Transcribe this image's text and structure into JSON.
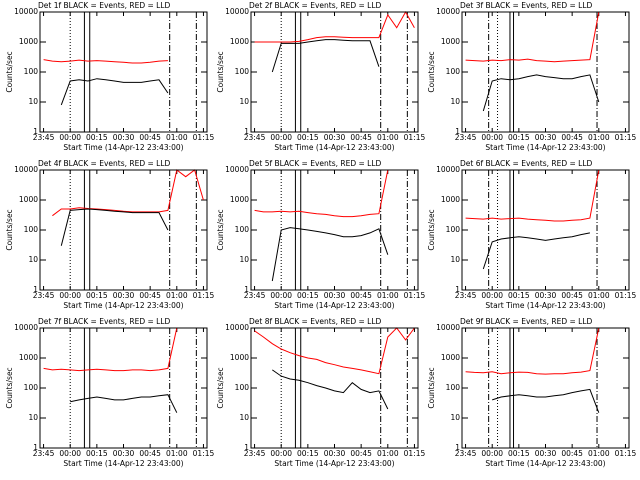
{
  "chart_data": [
    {
      "type": "line",
      "title": "Det 1f BLACK = Events, RED = LLD",
      "x_label": "Start Time (14-Apr-12 23:43:00)",
      "y_label": "Counts/sec",
      "log_y": true,
      "x": [
        "23:45",
        "23:50",
        "23:55",
        "00:00",
        "00:05",
        "00:10",
        "00:15",
        "00:20",
        "00:25",
        "00:30",
        "00:35",
        "00:40",
        "00:45",
        "00:50",
        "00:55",
        "01:00",
        "01:05",
        "01:10",
        "01:15"
      ],
      "xlim": [
        "23:43",
        "01:17"
      ],
      "xticks": [
        "23:45",
        "00:00",
        "00:15",
        "00:30",
        "00:45",
        "01:00",
        "01:15"
      ],
      "ylim": [
        1,
        10000
      ],
      "yticks": [
        1,
        10,
        100,
        1000,
        10000
      ],
      "markers": [
        {
          "x": "00:00",
          "style": "dotted"
        },
        {
          "x": "00:08",
          "style": "solid"
        },
        {
          "x": "00:11",
          "style": "solid"
        },
        {
          "x": "00:56",
          "style": "dashdot"
        },
        {
          "x": "01:11",
          "style": "dashdot"
        }
      ],
      "series": [
        {
          "color": "#ff0000",
          "values": [
            260,
            230,
            220,
            230,
            250,
            230,
            240,
            230,
            220,
            210,
            200,
            200,
            210,
            230,
            240,
            null,
            null,
            null,
            null
          ]
        },
        {
          "color": "#000000",
          "values": [
            null,
            null,
            8,
            50,
            55,
            50,
            60,
            55,
            50,
            45,
            45,
            45,
            50,
            55,
            20,
            null,
            null,
            null,
            null
          ]
        }
      ]
    },
    {
      "type": "line",
      "title": "Det 2f BLACK = Events, RED = LLD",
      "x_label": "Start Time (14-Apr-12 23:43:00)",
      "y_label": "Counts/sec",
      "log_y": true,
      "x": [
        "23:45",
        "23:50",
        "23:55",
        "00:00",
        "00:05",
        "00:10",
        "00:15",
        "00:20",
        "00:25",
        "00:30",
        "00:35",
        "00:40",
        "00:45",
        "00:50",
        "00:55",
        "01:00",
        "01:05",
        "01:10",
        "01:15"
      ],
      "xlim": [
        "23:43",
        "01:17"
      ],
      "xticks": [
        "23:45",
        "00:00",
        "00:15",
        "00:30",
        "00:45",
        "01:00",
        "01:15"
      ],
      "ylim": [
        1,
        10000
      ],
      "yticks": [
        1,
        10,
        100,
        1000,
        10000
      ],
      "markers": [
        {
          "x": "00:00",
          "style": "dotted"
        },
        {
          "x": "00:08",
          "style": "solid"
        },
        {
          "x": "00:11",
          "style": "solid"
        },
        {
          "x": "00:56",
          "style": "dashdot"
        },
        {
          "x": "01:11",
          "style": "dashdot"
        }
      ],
      "series": [
        {
          "color": "#ff0000",
          "values": [
            1000,
            1000,
            1000,
            1000,
            1000,
            1050,
            1200,
            1400,
            1500,
            1500,
            1450,
            1400,
            1400,
            1400,
            1400,
            8000,
            3000,
            10000,
            3000
          ]
        },
        {
          "color": "#000000",
          "values": [
            null,
            null,
            100,
            900,
            900,
            900,
            1000,
            1100,
            1200,
            1200,
            1150,
            1100,
            1100,
            1100,
            150,
            null,
            null,
            null,
            null
          ]
        }
      ]
    },
    {
      "type": "line",
      "title": "Det 3f BLACK = Events, RED = LLD",
      "x_label": "Start Time (14-Apr-12 23:43:00)",
      "y_label": "Counts/sec",
      "log_y": true,
      "x": [
        "23:45",
        "23:50",
        "23:55",
        "00:00",
        "00:05",
        "00:10",
        "00:15",
        "00:20",
        "00:25",
        "00:30",
        "00:35",
        "00:40",
        "00:45",
        "00:50",
        "00:55",
        "01:00",
        "01:05",
        "01:10",
        "01:15"
      ],
      "xlim": [
        "23:43",
        "01:17"
      ],
      "xticks": [
        "23:45",
        "00:00",
        "00:15",
        "00:30",
        "00:45",
        "01:00",
        "01:15"
      ],
      "ylim": [
        1,
        10000
      ],
      "yticks": [
        1,
        10,
        100,
        1000,
        10000
      ],
      "markers": [
        {
          "x": "23:58",
          "style": "dashdot"
        },
        {
          "x": "00:03",
          "style": "dotted"
        },
        {
          "x": "00:10",
          "style": "solid"
        },
        {
          "x": "00:12",
          "style": "solid"
        },
        {
          "x": "00:59",
          "style": "dashdot"
        }
      ],
      "series": [
        {
          "color": "#ff0000",
          "values": [
            250,
            240,
            230,
            250,
            240,
            260,
            250,
            270,
            240,
            230,
            220,
            230,
            240,
            250,
            260,
            10000,
            null,
            null,
            null
          ]
        },
        {
          "color": "#000000",
          "values": [
            null,
            null,
            5,
            50,
            60,
            55,
            60,
            70,
            80,
            70,
            65,
            60,
            60,
            70,
            80,
            10,
            null,
            null,
            null
          ]
        }
      ]
    },
    {
      "type": "line",
      "title": "Det 4f BLACK = Events, RED = LLD",
      "x_label": "Start Time (14-Apr-12 23:43:00)",
      "y_label": "Counts/sec",
      "log_y": true,
      "x": [
        "23:45",
        "23:50",
        "23:55",
        "00:00",
        "00:05",
        "00:10",
        "00:15",
        "00:20",
        "00:25",
        "00:30",
        "00:35",
        "00:40",
        "00:45",
        "00:50",
        "00:55",
        "01:00",
        "01:05",
        "01:10",
        "01:15"
      ],
      "xlim": [
        "23:43",
        "01:17"
      ],
      "xticks": [
        "23:45",
        "00:00",
        "00:15",
        "00:30",
        "00:45",
        "01:00",
        "01:15"
      ],
      "ylim": [
        1,
        10000
      ],
      "yticks": [
        1,
        10,
        100,
        1000,
        10000
      ],
      "markers": [
        {
          "x": "00:00",
          "style": "dotted"
        },
        {
          "x": "00:08",
          "style": "solid"
        },
        {
          "x": "00:11",
          "style": "solid"
        },
        {
          "x": "00:56",
          "style": "dashdot"
        },
        {
          "x": "01:11",
          "style": "dashdot"
        }
      ],
      "series": [
        {
          "color": "#ff0000",
          "values": [
            null,
            300,
            500,
            500,
            550,
            520,
            500,
            480,
            450,
            420,
            400,
            400,
            400,
            400,
            450,
            10000,
            6000,
            10000,
            1000
          ]
        },
        {
          "color": "#000000",
          "values": [
            null,
            null,
            30,
            450,
            480,
            500,
            480,
            450,
            420,
            400,
            380,
            380,
            380,
            380,
            100,
            null,
            null,
            null,
            null
          ]
        }
      ]
    },
    {
      "type": "line",
      "title": "Det 5f BLACK = Events, RED = LLD",
      "x_label": "Start Time (14-Apr-12 23:43:00)",
      "y_label": "Counts/sec",
      "log_y": true,
      "x": [
        "23:45",
        "23:50",
        "23:55",
        "00:00",
        "00:05",
        "00:10",
        "00:15",
        "00:20",
        "00:25",
        "00:30",
        "00:35",
        "00:40",
        "00:45",
        "00:50",
        "00:55",
        "01:00",
        "01:05",
        "01:10",
        "01:15"
      ],
      "xlim": [
        "23:43",
        "01:17"
      ],
      "xticks": [
        "23:45",
        "00:00",
        "00:15",
        "00:30",
        "00:45",
        "01:00",
        "01:15"
      ],
      "ylim": [
        1,
        10000
      ],
      "yticks": [
        1,
        10,
        100,
        1000,
        10000
      ],
      "markers": [
        {
          "x": "00:00",
          "style": "dotted"
        },
        {
          "x": "00:08",
          "style": "solid"
        },
        {
          "x": "00:11",
          "style": "solid"
        },
        {
          "x": "00:56",
          "style": "dashdot"
        },
        {
          "x": "01:11",
          "style": "dashdot"
        }
      ],
      "series": [
        {
          "color": "#ff0000",
          "values": [
            450,
            400,
            400,
            420,
            400,
            420,
            380,
            350,
            330,
            300,
            280,
            280,
            300,
            330,
            350,
            10000,
            null,
            null,
            null
          ]
        },
        {
          "color": "#000000",
          "values": [
            null,
            null,
            2,
            100,
            120,
            110,
            100,
            90,
            80,
            70,
            60,
            60,
            65,
            80,
            110,
            15,
            null,
            null,
            null
          ]
        }
      ]
    },
    {
      "type": "line",
      "title": "Det 6f BLACK = Events, RED = LLD",
      "x_label": "Start Time (14-Apr-12 23:43:00)",
      "y_label": "Counts/sec",
      "log_y": true,
      "x": [
        "23:45",
        "23:50",
        "23:55",
        "00:00",
        "00:05",
        "00:10",
        "00:15",
        "00:20",
        "00:25",
        "00:30",
        "00:35",
        "00:40",
        "00:45",
        "00:50",
        "00:55",
        "01:00",
        "01:05",
        "01:10",
        "01:15"
      ],
      "xlim": [
        "23:43",
        "01:17"
      ],
      "xticks": [
        "23:45",
        "00:00",
        "00:15",
        "00:30",
        "00:45",
        "01:00",
        "01:15"
      ],
      "ylim": [
        1,
        10000
      ],
      "yticks": [
        1,
        10,
        100,
        1000,
        10000
      ],
      "markers": [
        {
          "x": "23:58",
          "style": "dashdot"
        },
        {
          "x": "00:03",
          "style": "dotted"
        },
        {
          "x": "00:10",
          "style": "solid"
        },
        {
          "x": "00:12",
          "style": "solid"
        },
        {
          "x": "00:59",
          "style": "dashdot"
        }
      ],
      "series": [
        {
          "color": "#ff0000",
          "values": [
            250,
            240,
            230,
            250,
            230,
            240,
            250,
            230,
            220,
            210,
            200,
            200,
            210,
            220,
            250,
            10000,
            null,
            null,
            null
          ]
        },
        {
          "color": "#000000",
          "values": [
            null,
            null,
            5,
            40,
            50,
            55,
            60,
            55,
            50,
            45,
            50,
            55,
            60,
            70,
            80,
            null,
            null,
            null,
            null
          ]
        }
      ]
    },
    {
      "type": "line",
      "title": "Det 7f BLACK = Events, RED = LLD",
      "x_label": "Start Time (14-Apr-12 23:43:00)",
      "y_label": "Counts/sec",
      "log_y": true,
      "x": [
        "23:45",
        "23:50",
        "23:55",
        "00:00",
        "00:05",
        "00:10",
        "00:15",
        "00:20",
        "00:25",
        "00:30",
        "00:35",
        "00:40",
        "00:45",
        "00:50",
        "00:55",
        "01:00",
        "01:05",
        "01:10",
        "01:15"
      ],
      "xlim": [
        "23:43",
        "01:17"
      ],
      "xticks": [
        "23:45",
        "00:00",
        "00:15",
        "00:30",
        "00:45",
        "01:00",
        "01:15"
      ],
      "ylim": [
        1,
        10000
      ],
      "yticks": [
        1,
        10,
        100,
        1000,
        10000
      ],
      "markers": [
        {
          "x": "00:00",
          "style": "dotted"
        },
        {
          "x": "00:08",
          "style": "solid"
        },
        {
          "x": "00:11",
          "style": "solid"
        },
        {
          "x": "00:56",
          "style": "dashdot"
        },
        {
          "x": "01:11",
          "style": "dashdot"
        }
      ],
      "series": [
        {
          "color": "#ff0000",
          "values": [
            450,
            400,
            420,
            400,
            380,
            400,
            420,
            400,
            380,
            380,
            400,
            400,
            380,
            400,
            450,
            10000,
            null,
            null,
            null
          ]
        },
        {
          "color": "#000000",
          "values": [
            null,
            null,
            null,
            35,
            40,
            45,
            50,
            45,
            40,
            40,
            45,
            50,
            50,
            55,
            60,
            15,
            null,
            null,
            null
          ]
        }
      ]
    },
    {
      "type": "line",
      "title": "Det 8f BLACK = Events, RED = LLD",
      "x_label": "Start Time (14-Apr-12 23:43:00)",
      "y_label": "Counts/sec",
      "log_y": true,
      "x": [
        "23:45",
        "23:50",
        "23:55",
        "00:00",
        "00:05",
        "00:10",
        "00:15",
        "00:20",
        "00:25",
        "00:30",
        "00:35",
        "00:40",
        "00:45",
        "00:50",
        "00:55",
        "01:00",
        "01:05",
        "01:10",
        "01:15"
      ],
      "xlim": [
        "23:43",
        "01:17"
      ],
      "xticks": [
        "23:45",
        "00:00",
        "00:15",
        "00:30",
        "00:45",
        "01:00",
        "01:15"
      ],
      "ylim": [
        1,
        10000
      ],
      "yticks": [
        1,
        10,
        100,
        1000,
        10000
      ],
      "markers": [
        {
          "x": "00:00",
          "style": "dotted"
        },
        {
          "x": "00:08",
          "style": "solid"
        },
        {
          "x": "00:11",
          "style": "solid"
        },
        {
          "x": "00:56",
          "style": "dashdot"
        },
        {
          "x": "01:11",
          "style": "dashdot"
        }
      ],
      "series": [
        {
          "color": "#ff0000",
          "values": [
            8000,
            5000,
            3000,
            2000,
            1500,
            1200,
            1000,
            900,
            700,
            600,
            500,
            450,
            400,
            350,
            300,
            5000,
            10000,
            4000,
            10000
          ]
        },
        {
          "color": "#000000",
          "values": [
            null,
            null,
            400,
            250,
            200,
            180,
            150,
            120,
            100,
            80,
            70,
            150,
            90,
            70,
            80,
            20,
            null,
            null,
            null
          ]
        }
      ]
    },
    {
      "type": "line",
      "title": "Det 9f BLACK = Events, RED = LLD",
      "x_label": "Start Time (14-Apr-12 23:43:00)",
      "y_label": "Counts/sec",
      "log_y": true,
      "x": [
        "23:45",
        "23:50",
        "23:55",
        "00:00",
        "00:05",
        "00:10",
        "00:15",
        "00:20",
        "00:25",
        "00:30",
        "00:35",
        "00:40",
        "00:45",
        "00:50",
        "00:55",
        "01:00",
        "01:05",
        "01:10",
        "01:15"
      ],
      "xlim": [
        "23:43",
        "01:17"
      ],
      "xticks": [
        "23:45",
        "00:00",
        "00:15",
        "00:30",
        "00:45",
        "01:00",
        "01:15"
      ],
      "ylim": [
        1,
        10000
      ],
      "yticks": [
        1,
        10,
        100,
        1000,
        10000
      ],
      "markers": [
        {
          "x": "23:58",
          "style": "dashdot"
        },
        {
          "x": "00:03",
          "style": "dotted"
        },
        {
          "x": "00:10",
          "style": "solid"
        },
        {
          "x": "00:12",
          "style": "solid"
        },
        {
          "x": "00:59",
          "style": "dashdot"
        }
      ],
      "series": [
        {
          "color": "#ff0000",
          "values": [
            350,
            330,
            320,
            350,
            300,
            320,
            340,
            330,
            300,
            290,
            300,
            300,
            320,
            340,
            380,
            10000,
            null,
            null,
            null
          ]
        },
        {
          "color": "#000000",
          "values": [
            null,
            null,
            null,
            40,
            50,
            55,
            60,
            55,
            50,
            50,
            55,
            60,
            70,
            80,
            90,
            15,
            null,
            null,
            null
          ]
        }
      ]
    }
  ]
}
